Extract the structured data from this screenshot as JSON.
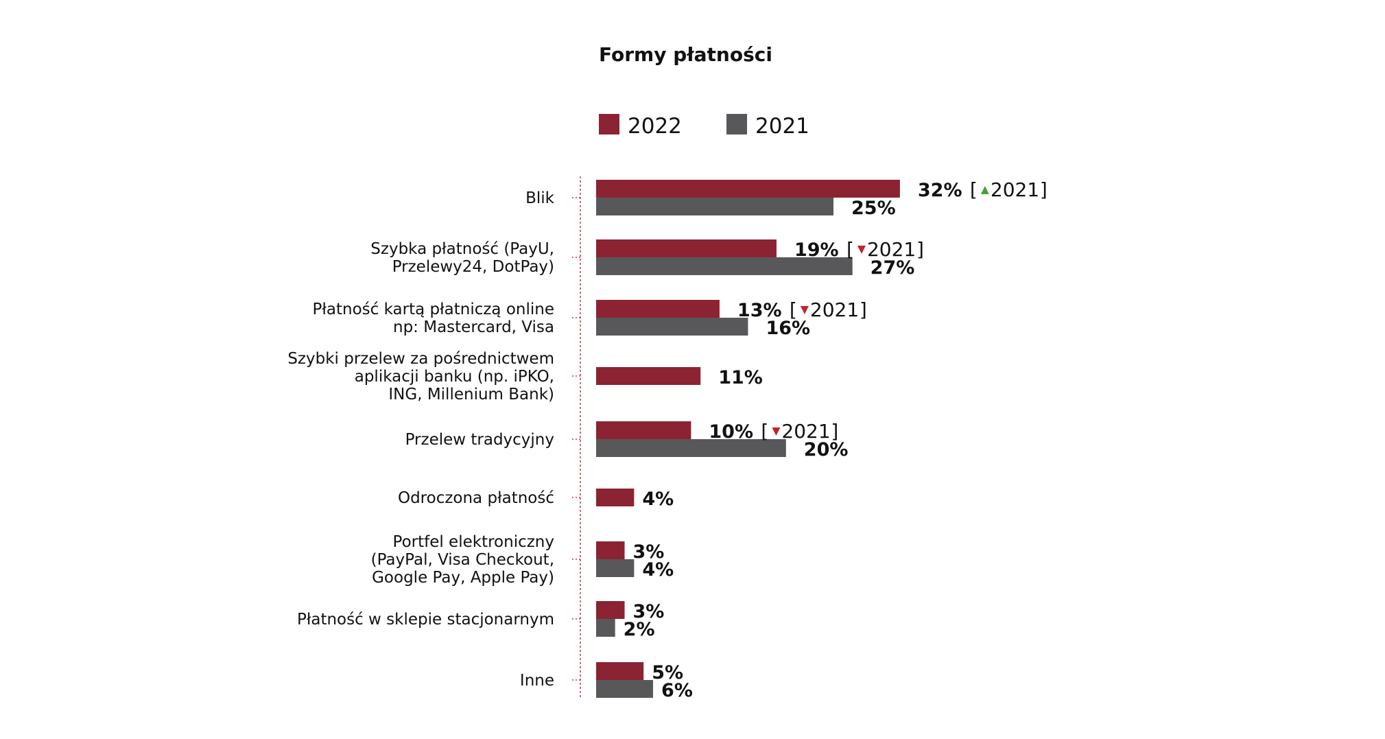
{
  "colors": {
    "series_2022": "#8b2332",
    "series_2021": "#58585a",
    "axis_line": "#cc3344",
    "arrow_up": "#4a9e3a",
    "arrow_down": "#c0242c"
  },
  "chart_data": {
    "type": "bar",
    "orientation": "horizontal",
    "title": "Formy płatności",
    "legend_position": "top",
    "grid": false,
    "xlim": [
      0,
      32
    ],
    "categories": [
      [
        "Blik"
      ],
      [
        "Szybka płatność (PayU,",
        "Przelewy24, DotPay)"
      ],
      [
        "Płatność kartą płatniczą online",
        "np: Mastercard, Visa"
      ],
      [
        "Szybki przelew za pośrednictwem",
        "aplikacji banku (np. iPKO,",
        "ING, Millenium Bank)"
      ],
      [
        "Przelew tradycyjny"
      ],
      [
        "Odroczona płatność"
      ],
      [
        "Portfel elektroniczny",
        "(PayPal, Visa Checkout,",
        "Google Pay, Apple Pay)"
      ],
      [
        "Płatność w sklepie stacjonarnym"
      ],
      [
        "Inne"
      ]
    ],
    "series": [
      {
        "name": "2022",
        "color_key": "series_2022",
        "values": [
          32,
          19,
          13,
          11,
          10,
          4,
          3,
          3,
          5
        ],
        "labels": [
          "32%",
          "19%",
          "13%",
          "11%",
          "10%",
          "4%",
          "3%",
          "3%",
          "5%"
        ]
      },
      {
        "name": "2021",
        "color_key": "series_2021",
        "values": [
          25,
          27,
          16,
          null,
          20,
          null,
          4,
          2,
          6
        ],
        "labels": [
          "25%",
          "27%",
          "16%",
          null,
          "20%",
          null,
          "4%",
          "2%",
          "6%"
        ]
      }
    ],
    "annotations": [
      {
        "category_index": 0,
        "direction": "up",
        "text": "2021"
      },
      {
        "category_index": 1,
        "direction": "down",
        "text": "2021"
      },
      {
        "category_index": 2,
        "direction": "down",
        "text": "2021"
      },
      {
        "category_index": 4,
        "direction": "down",
        "text": "2021"
      }
    ]
  }
}
